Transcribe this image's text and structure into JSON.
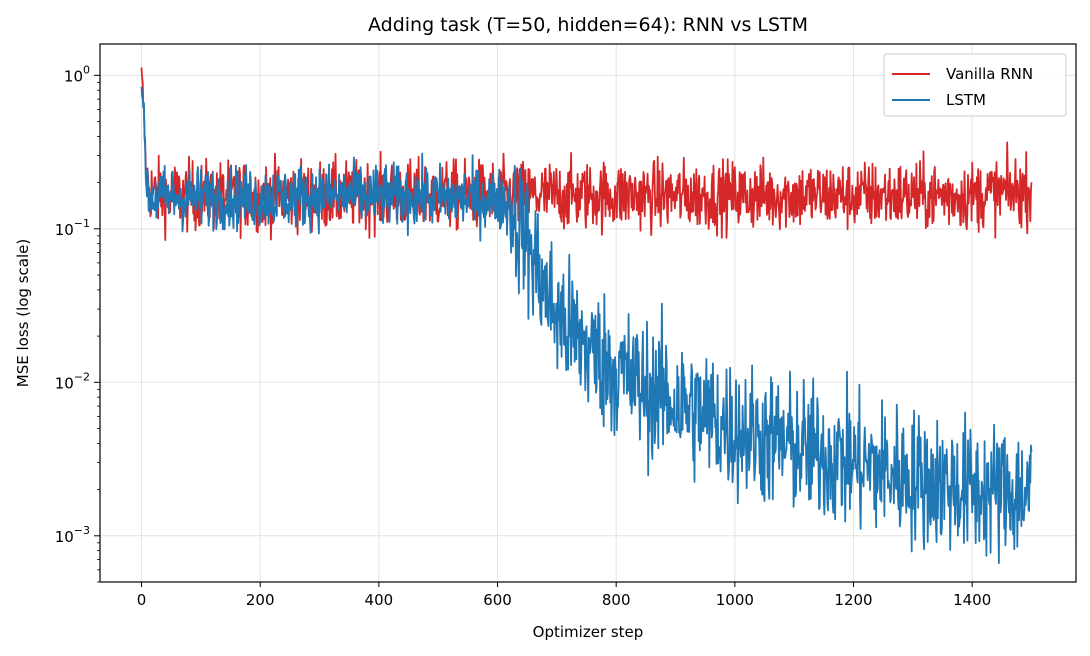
{
  "chart_data": {
    "type": "line",
    "title": "Adding task (T=50, hidden=64): RNN vs LSTM",
    "xlabel": "Optimizer step",
    "ylabel": "MSE loss (log scale)",
    "xlim": [
      -70,
      1575
    ],
    "ylim": [
      0.0005,
      1.6
    ],
    "yscale": "log",
    "xticks": [
      0,
      200,
      400,
      600,
      800,
      1000,
      1200,
      1400
    ],
    "yticks": [
      {
        "base": "10",
        "exp": "0",
        "value": 1
      },
      {
        "base": "10",
        "exp": "−1",
        "value": 0.1
      },
      {
        "base": "10",
        "exp": "−2",
        "value": 0.01
      },
      {
        "base": "10",
        "exp": "−3",
        "value": 0.001
      }
    ],
    "grid": true,
    "legend_position": "top-right",
    "series": [
      {
        "name": "Vanilla RNN",
        "color": "#d62728",
        "x": [
          0,
          2,
          4,
          6,
          8,
          12,
          20,
          40,
          60,
          100,
          150,
          200,
          300,
          400,
          500,
          600,
          700,
          800,
          900,
          1000,
          1100,
          1200,
          1300,
          1400,
          1500
        ],
        "y": [
          1.0,
          0.8,
          0.55,
          0.35,
          0.22,
          0.19,
          0.17,
          0.165,
          0.165,
          0.165,
          0.165,
          0.165,
          0.165,
          0.165,
          0.165,
          0.165,
          0.165,
          0.165,
          0.165,
          0.165,
          0.165,
          0.165,
          0.165,
          0.165,
          0.18
        ]
      },
      {
        "name": "LSTM",
        "color": "#1f77b4",
        "x": [
          0,
          2,
          4,
          6,
          8,
          12,
          20,
          40,
          100,
          200,
          300,
          400,
          500,
          600,
          620,
          640,
          660,
          680,
          700,
          750,
          800,
          850,
          900,
          1000,
          1100,
          1200,
          1300,
          1400,
          1500
        ],
        "y": [
          0.95,
          0.75,
          0.5,
          0.3,
          0.2,
          0.17,
          0.16,
          0.16,
          0.16,
          0.16,
          0.165,
          0.165,
          0.16,
          0.155,
          0.14,
          0.1,
          0.065,
          0.04,
          0.027,
          0.017,
          0.012,
          0.009,
          0.0075,
          0.005,
          0.0038,
          0.003,
          0.0024,
          0.002,
          0.0019
        ]
      }
    ]
  }
}
